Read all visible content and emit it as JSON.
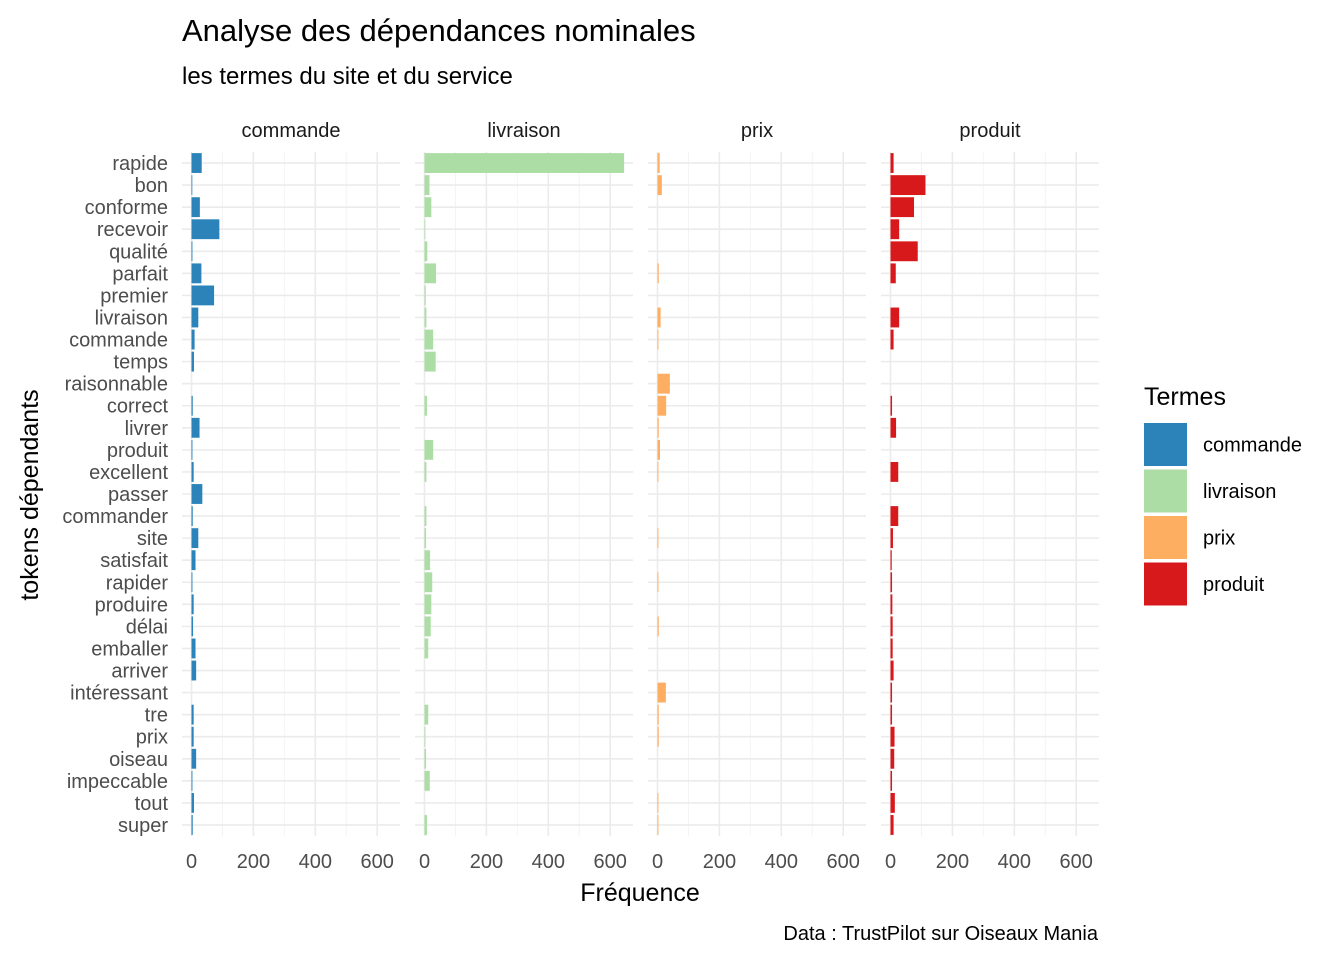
{
  "chart_data": {
    "type": "bar",
    "orientation": "horizontal",
    "faceted": true,
    "title": "Analyse des dépendances nominales",
    "subtitle": "les termes du site et du service",
    "xlabel": "Fréquence",
    "ylabel": "tokens dépendants",
    "caption": "Data : TrustPilot sur Oiseaux Mania",
    "xlim": [
      0,
      660
    ],
    "xticks": [
      0,
      200,
      400,
      600
    ],
    "xtick_labels": [
      "0",
      "200",
      "400",
      "600"
    ],
    "legend": {
      "title": "Termes",
      "placement": "right",
      "entries": [
        "commande",
        "livraison",
        "prix",
        "produit"
      ]
    },
    "categories": [
      "rapide",
      "bon",
      "conforme",
      "recevoir",
      "qualité",
      "parfait",
      "premier",
      "livraison",
      "commande",
      "temps",
      "raisonnable",
      "correct",
      "livrer",
      "produit",
      "excellent",
      "passer",
      "commander",
      "site",
      "satisfait",
      "rapider",
      "produire",
      "délai",
      "emballer",
      "arriver",
      "intéressant",
      "tre",
      "prix",
      "oiseau",
      "impeccable",
      "tout",
      "super"
    ],
    "series": [
      {
        "name": "commande",
        "color": "#2b83ba",
        "values": [
          33,
          2,
          27,
          90,
          3,
          32,
          73,
          22,
          10,
          8,
          0,
          4,
          26,
          3,
          7,
          35,
          4,
          22,
          13,
          3,
          7,
          5,
          13,
          15,
          0,
          7,
          7,
          15,
          3,
          8,
          4
        ]
      },
      {
        "name": "livraison",
        "color": "#abdda4",
        "values": [
          645,
          16,
          22,
          2,
          9,
          37,
          4,
          6,
          28,
          36,
          0,
          8,
          0,
          28,
          6,
          0,
          6,
          5,
          18,
          25,
          22,
          20,
          12,
          0,
          0,
          12,
          3,
          5,
          17,
          0,
          8
        ]
      },
      {
        "name": "prix",
        "color": "#fdae61",
        "values": [
          7,
          14,
          0,
          0,
          0,
          4,
          0,
          10,
          3,
          0,
          40,
          28,
          4,
          8,
          3,
          0,
          0,
          3,
          0,
          3,
          0,
          4,
          0,
          0,
          27,
          4,
          4,
          0,
          0,
          3,
          3
        ]
      },
      {
        "name": "produit",
        "color": "#d7191c",
        "values": [
          10,
          113,
          76,
          28,
          88,
          17,
          0,
          28,
          10,
          0,
          0,
          5,
          18,
          0,
          25,
          0,
          25,
          8,
          4,
          5,
          6,
          7,
          7,
          10,
          5,
          5,
          13,
          12,
          5,
          14,
          10
        ]
      }
    ]
  }
}
